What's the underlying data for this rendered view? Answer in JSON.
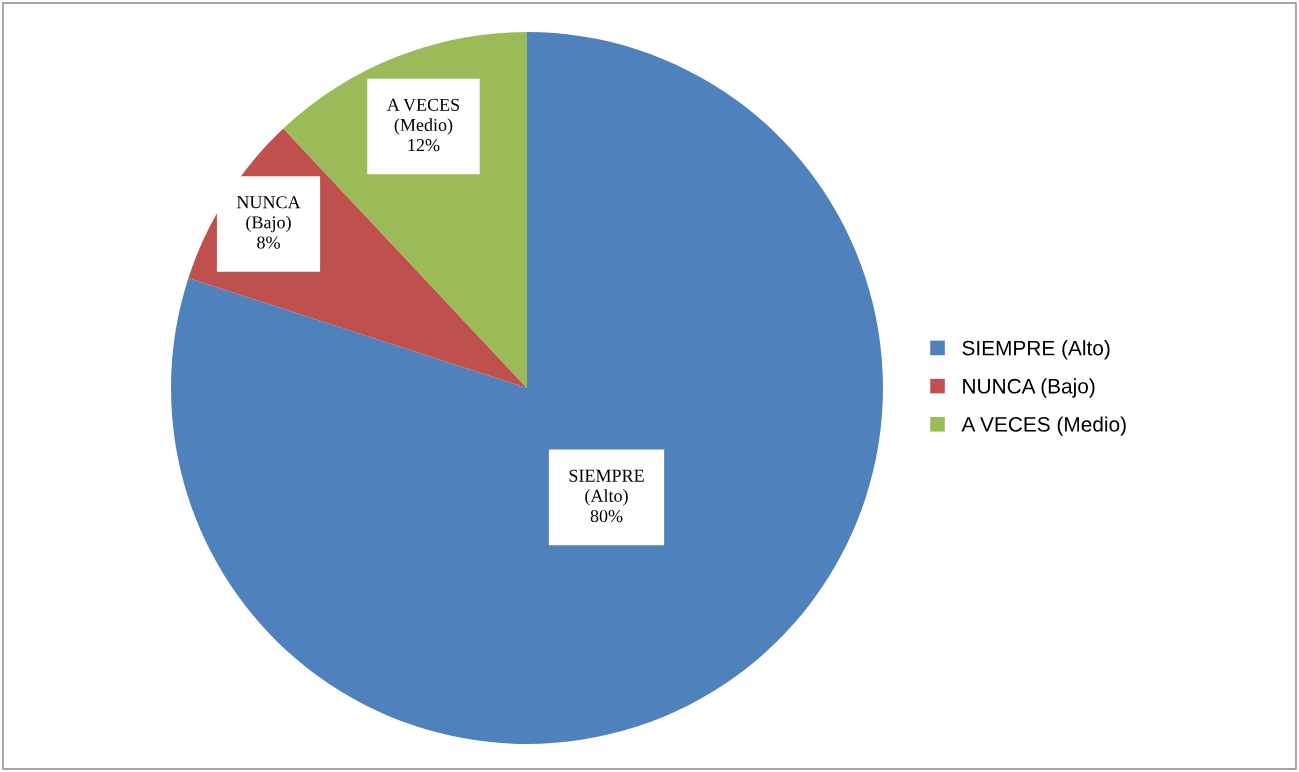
{
  "chart_data": {
    "type": "pie",
    "categories": [
      "SIEMPRE (Alto)",
      "NUNCA (Bajo)",
      "A VECES (Medio)"
    ],
    "values": [
      80,
      8,
      12
    ],
    "colors": [
      "#4f81bd",
      "#c0504d",
      "#9bbb59"
    ],
    "value_labels": [
      "SIEMPRE\n(Alto)\n80%",
      "NUNCA\n(Bajo)\n8%",
      "A VECES\n(Medio)\n12%"
    ],
    "legend": "right"
  }
}
